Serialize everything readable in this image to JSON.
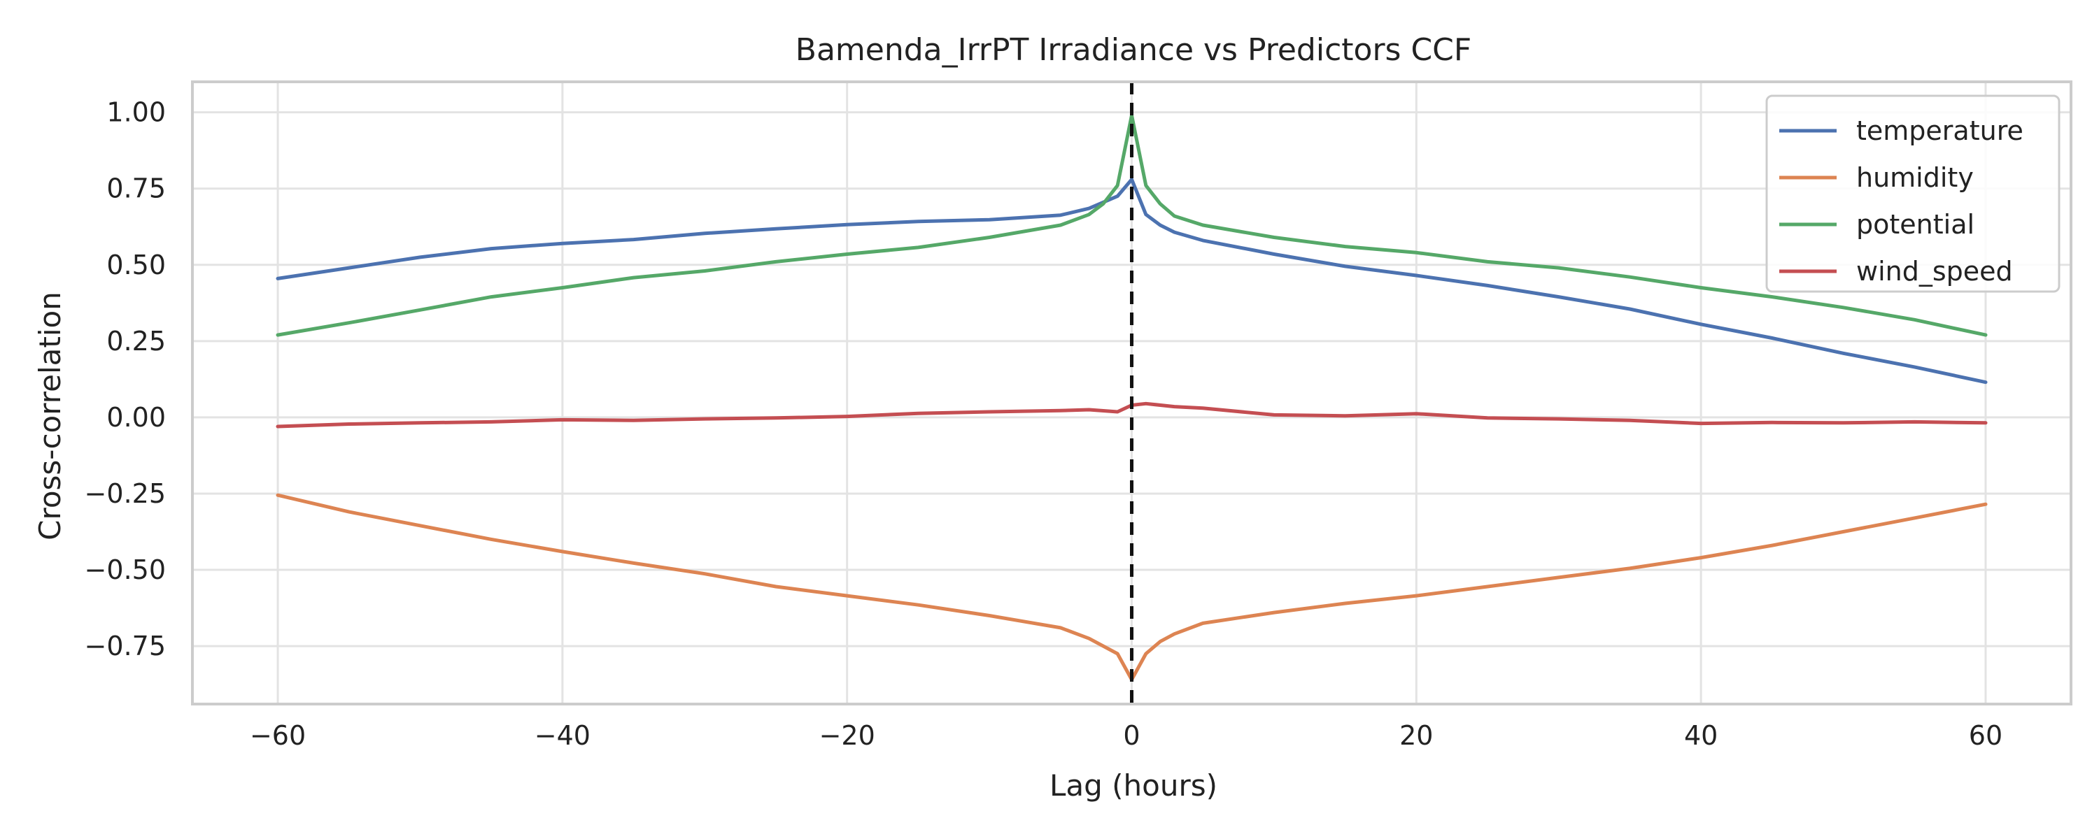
{
  "chart_data": {
    "type": "line",
    "title": "Bamenda_IrrPT Irradiance vs Predictors CCF",
    "xlabel": "Lag (hours)",
    "ylabel": "Cross-correlation",
    "xlim": [
      -66,
      66
    ],
    "ylim": [
      -0.94,
      1.1
    ],
    "xticks": [
      -60,
      -40,
      -20,
      0,
      20,
      40,
      60
    ],
    "xtick_labels": [
      "−60",
      "−40",
      "−20",
      "0",
      "20",
      "40",
      "60"
    ],
    "yticks": [
      1.0,
      0.75,
      0.5,
      0.25,
      0.0,
      -0.25,
      -0.5,
      -0.75
    ],
    "ytick_labels": [
      "1.00",
      "0.75",
      "0.50",
      "0.25",
      "0.00",
      "−0.25",
      "−0.50",
      "−0.75"
    ],
    "grid": true,
    "legend_position": "top-right",
    "reference_line": {
      "x": 0,
      "style": "dashed",
      "color": "#111111"
    },
    "series": [
      {
        "name": "temperature",
        "color": "#4c72b0",
        "points": [
          [
            -60,
            0.455
          ],
          [
            -55,
            0.49
          ],
          [
            -50,
            0.525
          ],
          [
            -45,
            0.553
          ],
          [
            -40,
            0.57
          ],
          [
            -35,
            0.583
          ],
          [
            -30,
            0.603
          ],
          [
            -25,
            0.618
          ],
          [
            -20,
            0.632
          ],
          [
            -15,
            0.642
          ],
          [
            -10,
            0.648
          ],
          [
            -5,
            0.663
          ],
          [
            -3,
            0.685
          ],
          [
            -1,
            0.725
          ],
          [
            0,
            0.78
          ],
          [
            1,
            0.665
          ],
          [
            2,
            0.63
          ],
          [
            3,
            0.607
          ],
          [
            5,
            0.58
          ],
          [
            10,
            0.535
          ],
          [
            15,
            0.495
          ],
          [
            20,
            0.465
          ],
          [
            25,
            0.432
          ],
          [
            30,
            0.395
          ],
          [
            35,
            0.355
          ],
          [
            40,
            0.305
          ],
          [
            45,
            0.26
          ],
          [
            50,
            0.21
          ],
          [
            55,
            0.165
          ],
          [
            60,
            0.115
          ]
        ]
      },
      {
        "name": "humidity",
        "color": "#dd8452",
        "points": [
          [
            -60,
            -0.255
          ],
          [
            -55,
            -0.31
          ],
          [
            -50,
            -0.355
          ],
          [
            -45,
            -0.4
          ],
          [
            -40,
            -0.44
          ],
          [
            -35,
            -0.478
          ],
          [
            -30,
            -0.513
          ],
          [
            -25,
            -0.555
          ],
          [
            -20,
            -0.585
          ],
          [
            -15,
            -0.615
          ],
          [
            -10,
            -0.65
          ],
          [
            -5,
            -0.69
          ],
          [
            -3,
            -0.725
          ],
          [
            -1,
            -0.775
          ],
          [
            0,
            -0.86
          ],
          [
            1,
            -0.775
          ],
          [
            2,
            -0.735
          ],
          [
            3,
            -0.71
          ],
          [
            5,
            -0.675
          ],
          [
            10,
            -0.64
          ],
          [
            15,
            -0.61
          ],
          [
            20,
            -0.585
          ],
          [
            25,
            -0.555
          ],
          [
            30,
            -0.525
          ],
          [
            35,
            -0.495
          ],
          [
            40,
            -0.46
          ],
          [
            45,
            -0.42
          ],
          [
            50,
            -0.375
          ],
          [
            55,
            -0.33
          ],
          [
            60,
            -0.285
          ]
        ]
      },
      {
        "name": "potential",
        "color": "#55a868",
        "points": [
          [
            -60,
            0.27
          ],
          [
            -55,
            0.31
          ],
          [
            -50,
            0.352
          ],
          [
            -45,
            0.395
          ],
          [
            -40,
            0.425
          ],
          [
            -35,
            0.458
          ],
          [
            -30,
            0.48
          ],
          [
            -25,
            0.51
          ],
          [
            -20,
            0.535
          ],
          [
            -15,
            0.557
          ],
          [
            -10,
            0.59
          ],
          [
            -5,
            0.63
          ],
          [
            -3,
            0.665
          ],
          [
            -2,
            0.7
          ],
          [
            -1,
            0.76
          ],
          [
            0,
            0.99
          ],
          [
            1,
            0.76
          ],
          [
            2,
            0.7
          ],
          [
            3,
            0.66
          ],
          [
            5,
            0.63
          ],
          [
            10,
            0.59
          ],
          [
            15,
            0.56
          ],
          [
            20,
            0.54
          ],
          [
            25,
            0.51
          ],
          [
            30,
            0.49
          ],
          [
            35,
            0.46
          ],
          [
            40,
            0.425
          ],
          [
            45,
            0.395
          ],
          [
            50,
            0.36
          ],
          [
            55,
            0.32
          ],
          [
            60,
            0.27
          ]
        ]
      },
      {
        "name": "wind_speed",
        "color": "#c44e52",
        "points": [
          [
            -60,
            -0.03
          ],
          [
            -55,
            -0.022
          ],
          [
            -50,
            -0.018
          ],
          [
            -45,
            -0.015
          ],
          [
            -40,
            -0.008
          ],
          [
            -35,
            -0.01
          ],
          [
            -30,
            -0.005
          ],
          [
            -25,
            -0.002
          ],
          [
            -20,
            0.003
          ],
          [
            -15,
            0.013
          ],
          [
            -10,
            0.018
          ],
          [
            -5,
            0.022
          ],
          [
            -3,
            0.025
          ],
          [
            -1,
            0.018
          ],
          [
            0,
            0.04
          ],
          [
            1,
            0.045
          ],
          [
            3,
            0.035
          ],
          [
            5,
            0.03
          ],
          [
            10,
            0.008
          ],
          [
            15,
            0.005
          ],
          [
            20,
            0.012
          ],
          [
            25,
            -0.002
          ],
          [
            30,
            -0.005
          ],
          [
            35,
            -0.01
          ],
          [
            40,
            -0.02
          ],
          [
            45,
            -0.017
          ],
          [
            50,
            -0.018
          ],
          [
            55,
            -0.015
          ],
          [
            60,
            -0.018
          ]
        ]
      }
    ]
  }
}
